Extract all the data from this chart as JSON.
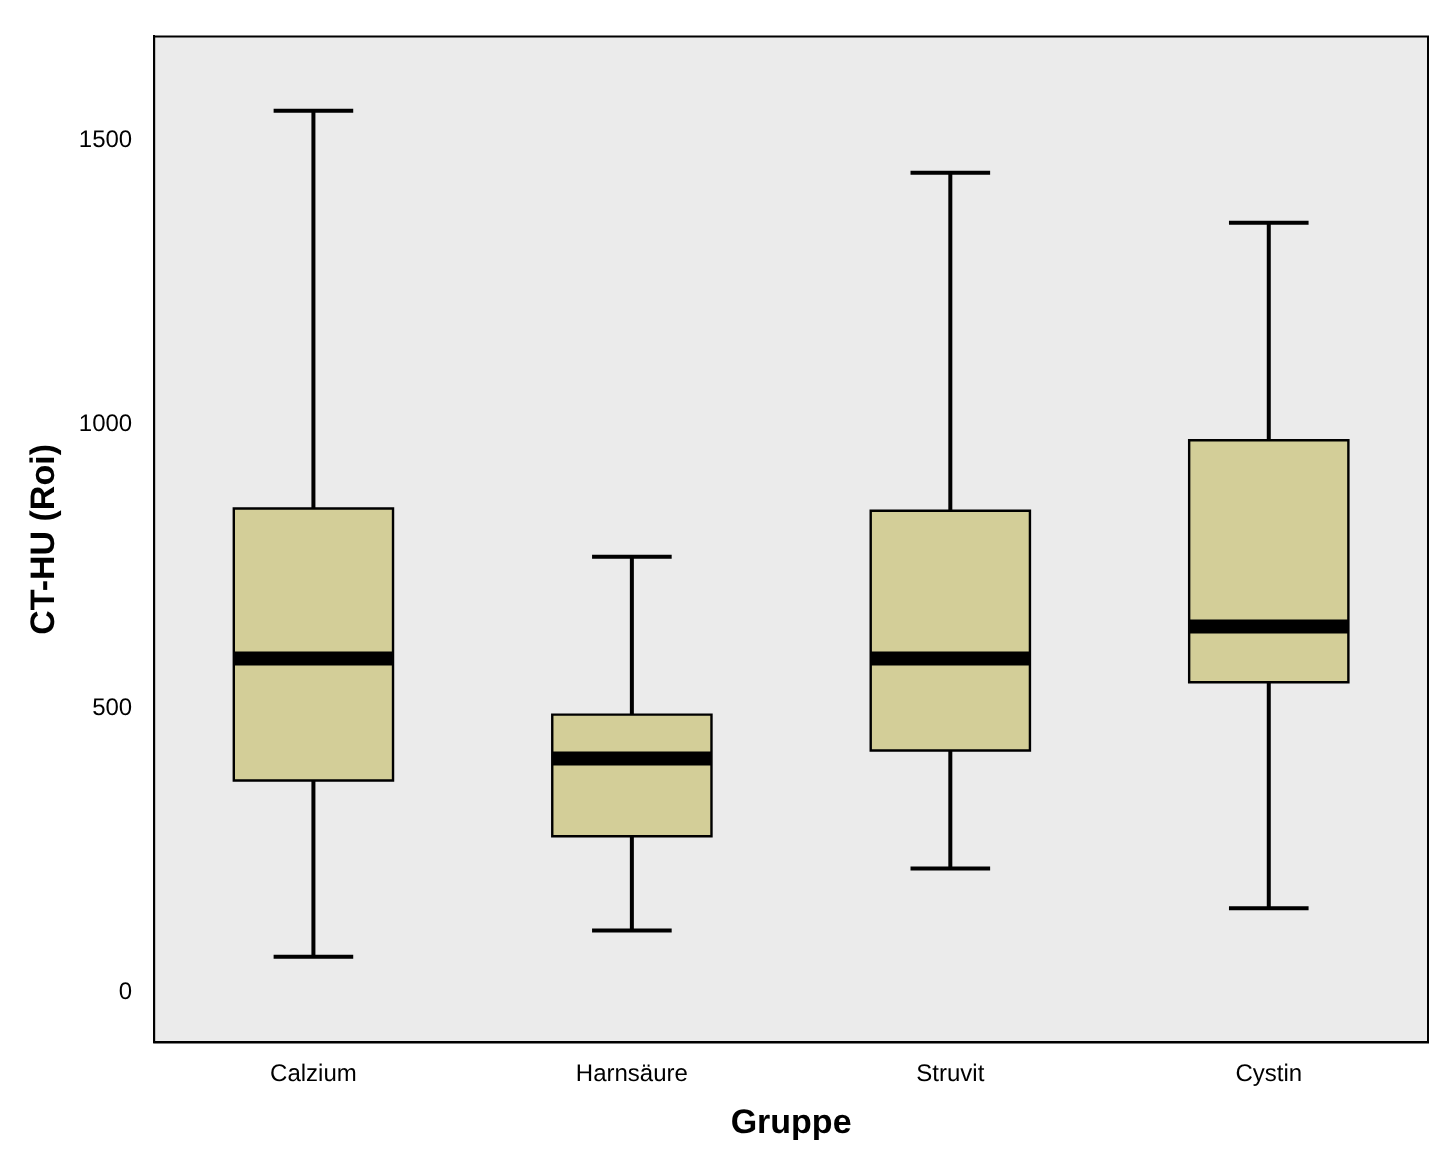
{
  "chart_data": {
    "type": "box",
    "xlabel": "Gruppe",
    "ylabel": "CT-HU (Roi)",
    "categories": [
      "Calzium",
      "Harnsäure",
      "Struvit",
      "Cystin"
    ],
    "color": "#d3ce98",
    "boxes": [
      {
        "low": 63,
        "q1": 373,
        "median": 588,
        "q3": 852,
        "high": 1552
      },
      {
        "low": 109,
        "q1": 275,
        "median": 412,
        "q3": 489,
        "high": 767
      },
      {
        "low": 218,
        "q1": 426,
        "median": 588,
        "q3": 848,
        "high": 1443
      },
      {
        "low": 148,
        "q1": 546,
        "median": 644,
        "q3": 972,
        "high": 1355
      }
    ],
    "ylim": [
      -88,
      1683
    ],
    "yticks": [
      0,
      500,
      1000,
      1500
    ],
    "grid": false,
    "legend": false
  }
}
